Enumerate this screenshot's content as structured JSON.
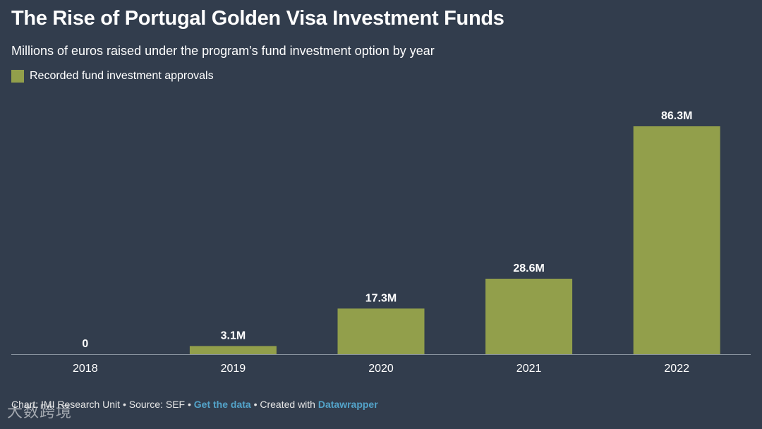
{
  "header": {
    "title": "The Rise of Portugal Golden Visa Investment Funds",
    "subtitle": "Millions of euros raised under the program's fund investment option by year"
  },
  "legend": {
    "label": "Recorded fund investment approvals",
    "color": "#929f4b"
  },
  "chart_data": {
    "type": "bar",
    "title": "The Rise of Portugal Golden Visa Investment Funds",
    "subtitle": "Millions of euros raised under the program's fund investment option by year",
    "xlabel": "",
    "ylabel": "",
    "categories": [
      "2018",
      "2019",
      "2020",
      "2021",
      "2022"
    ],
    "values": [
      0,
      3.1,
      17.3,
      28.6,
      86.3
    ],
    "data_labels": [
      "0",
      "3.1M",
      "17.3M",
      "28.6M",
      "86.3M"
    ],
    "series_name": "Recorded fund investment approvals",
    "ylim": [
      0,
      86.3
    ],
    "grid": false,
    "bar_color": "#929f4b",
    "axis_color": "#8a939f"
  },
  "footer": {
    "prefix": "Chart: IMI Research Unit • Source: SEF • ",
    "get_data": "Get the data",
    "middle": " • Created with ",
    "datawrapper": "Datawrapper"
  },
  "watermark": {
    "text": "大数跨境"
  }
}
